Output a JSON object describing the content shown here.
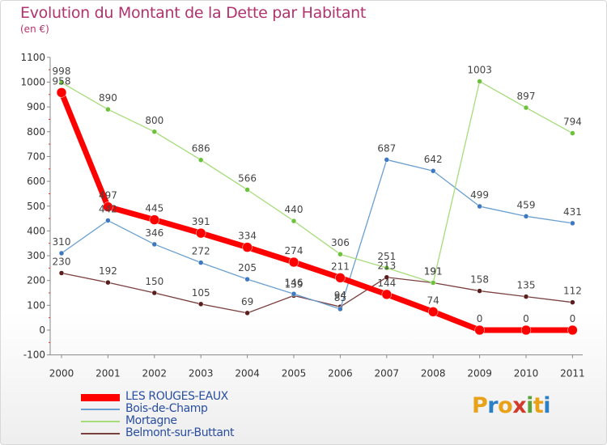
{
  "title": "Evolution du Montant de la Dette par Habitant",
  "subtitle": "(en €)",
  "logo_letters": [
    "P",
    "r",
    "o",
    "x",
    "i",
    "t",
    "i"
  ],
  "logo_colors": [
    "#e8a21a",
    "#2b7fc4",
    "#e8a21a",
    "#d23a2a",
    "#5aa33a",
    "#e8a21a",
    "#2b7fc4"
  ],
  "chart_data": {
    "type": "line",
    "title": "Evolution du Montant de la Dette par Habitant",
    "ylabel": "(en €)",
    "x": [
      "2000",
      "2001",
      "2002",
      "2003",
      "2004",
      "2005",
      "2006",
      "2007",
      "2008",
      "2009",
      "2010",
      "2011"
    ],
    "ylim": [
      -100,
      1100
    ],
    "yticks": [
      "-100",
      "0",
      "100",
      "200",
      "300",
      "400",
      "500",
      "600",
      "700",
      "800",
      "900",
      "1000",
      "1100"
    ],
    "grid": false,
    "legend_position": "bottom-left",
    "series": [
      {
        "name": "LES ROUGES-EAUX",
        "color": "#ff0000",
        "point_color": "#ff0000",
        "width": 7,
        "values": [
          958,
          497,
          445,
          391,
          334,
          274,
          211,
          144,
          74,
          0,
          0,
          0
        ]
      },
      {
        "name": "Bois-de-Champ",
        "color": "#6a9fd0",
        "point_color": "#3d78c0",
        "width": 1.3,
        "values": [
          310,
          442,
          346,
          272,
          205,
          146,
          85,
          687,
          642,
          499,
          459,
          431
        ]
      },
      {
        "name": "Mortagne",
        "color": "#a6dc7a",
        "point_color": "#6cc23a",
        "width": 1.3,
        "values": [
          998,
          890,
          800,
          686,
          566,
          440,
          306,
          251,
          191,
          1003,
          897,
          794
        ]
      },
      {
        "name": "Belmont-sur-Buttant",
        "color": "#7a3f3f",
        "point_color": "#5a1e1e",
        "width": 1.3,
        "values": [
          230,
          192,
          150,
          105,
          69,
          139,
          94,
          213,
          191,
          158,
          135,
          112
        ]
      }
    ]
  }
}
